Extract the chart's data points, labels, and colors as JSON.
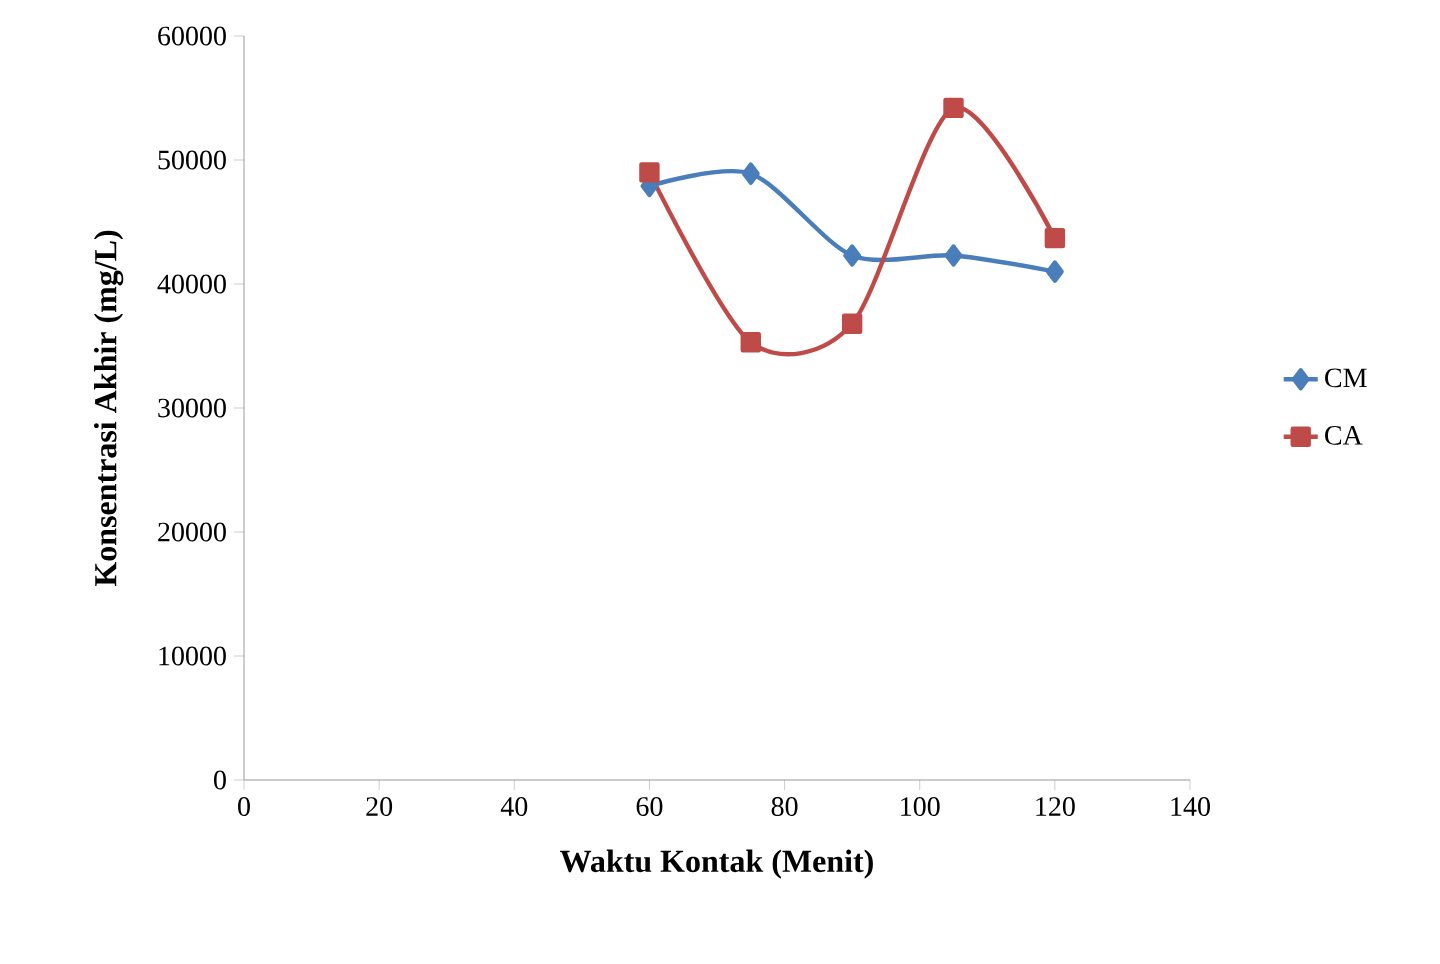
{
  "chart_data": {
    "type": "line",
    "xlabel": "Waktu Kontak (Menit)",
    "ylabel": "Konsentrasi Akhir (mg/L)",
    "x": [
      60,
      75,
      90,
      105,
      120
    ],
    "series": [
      {
        "name": "CM",
        "color": "#4a7ebb",
        "marker": "diamond",
        "values": [
          47900,
          48900,
          42300,
          42300,
          41000
        ]
      },
      {
        "name": "CA",
        "color": "#be4b48",
        "marker": "square",
        "values": [
          49000,
          35300,
          36800,
          54200,
          43700
        ]
      }
    ],
    "xlim": [
      0,
      140
    ],
    "xticks": [
      0,
      20,
      40,
      60,
      80,
      100,
      120,
      140
    ],
    "ylim": [
      0,
      60000
    ],
    "yticks": [
      0,
      10000,
      20000,
      30000,
      40000,
      50000,
      60000
    ],
    "grid": false,
    "legend": "right"
  }
}
